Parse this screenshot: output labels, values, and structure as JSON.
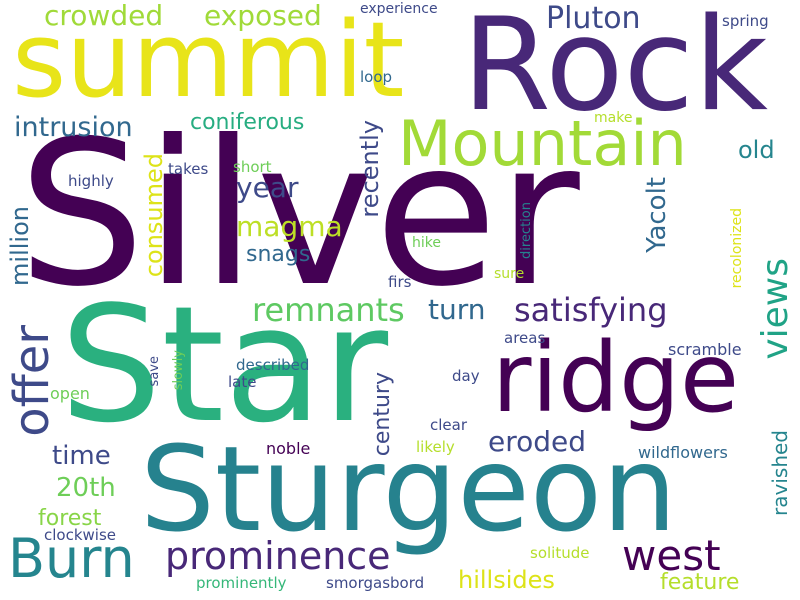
{
  "words": {
    "silver": "Silver",
    "star": "Star",
    "sturgeon": "Sturgeon",
    "rock": "Rock",
    "summit": "summit",
    "ridge": "ridge",
    "mountain": "Mountain",
    "burn": "Burn",
    "offer": "offer",
    "prominence": "prominence",
    "west": "west",
    "views": "views",
    "satisfying": "satisfying",
    "remnants": "remnants",
    "crowded": "crowded",
    "exposed": "exposed",
    "pluton": "Pluton",
    "intrusion": "intrusion",
    "coniferous": "coniferous",
    "year": "year",
    "magma": "magma",
    "snags": "snags",
    "consumed": "consumed",
    "recently": "recently",
    "yacolt": "Yacolt",
    "million": "million",
    "old": "old",
    "century": "century",
    "eroded": "eroded",
    "turn": "turn",
    "time": "time",
    "twentieth": "20th",
    "forest": "forest",
    "hillsides": "hillsides",
    "feature": "feature",
    "ravished": "ravished",
    "wildflowers": "wildflowers",
    "scramble": "scramble",
    "experience": "experience",
    "spring": "spring",
    "loop": "loop",
    "make": "make",
    "highly": "highly",
    "takes": "takes",
    "short": "short",
    "hike": "hike",
    "firs": "firs",
    "sure": "sure",
    "direction": "direction",
    "recolonized": "recolonized",
    "areas": "areas",
    "described": "described",
    "save": "save",
    "slowly": "slowly",
    "open": "open",
    "late": "late",
    "day": "day",
    "clear": "clear",
    "likely": "likely",
    "noble": "noble",
    "clockwise": "clockwise",
    "solitude": "solitude",
    "prominently": "prominently",
    "smorgasbord": "smorgasbord"
  },
  "colors": {
    "dark_purple": "#440154",
    "purple": "#482878",
    "indigo": "#3e4a89",
    "blue": "#31688e",
    "teal": "#26828e",
    "green_teal": "#1f9e89",
    "green": "#35b779",
    "light_green": "#6ece58",
    "lime": "#b5de2b",
    "yellow": "#fde725"
  }
}
